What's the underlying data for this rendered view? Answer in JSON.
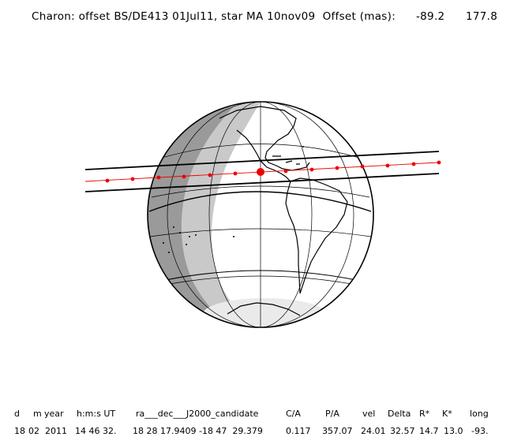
{
  "header": {
    "title": "Charon: offset BS/DE413 01Jul11, star MA 10nov09  Offset (mas):",
    "offset_ra": "-89.2",
    "offset_dec": "177.8"
  },
  "table": {
    "headers": [
      "d",
      "m",
      "year",
      "h:m:s UT",
      "ra___dec___J2000_candidate",
      "C/A",
      "P/A",
      "vel",
      "Delta",
      "R*",
      "K*",
      "long"
    ],
    "values": [
      "18",
      "02",
      "2011",
      "14 46 32.",
      "18 28 17.9409 -18 47  29.379",
      "0.117",
      "357.07",
      "24.01",
      "32.57",
      "14.7",
      "13.0",
      "-93."
    ]
  },
  "colors": {
    "night": "#9a9a9a",
    "twilight": "#c9c9c9",
    "dawn": "#dedede",
    "track_dots": "#ee0000",
    "lines": "#000000"
  }
}
